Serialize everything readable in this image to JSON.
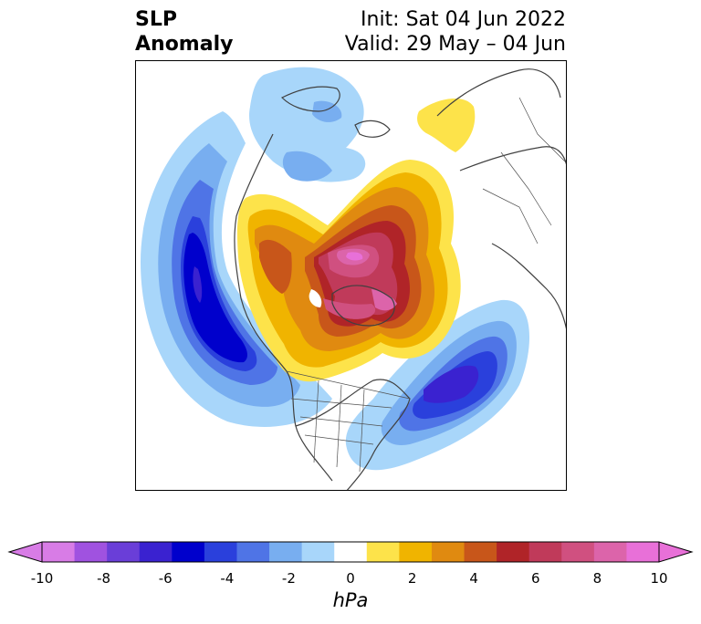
{
  "header": {
    "title_line1": "SLP",
    "title_line2": "Anomaly",
    "init": "Init: Sat 04 Jun 2022",
    "valid": "Valid: 29 May – 04 Jun"
  },
  "colorbar": {
    "unit": "hPa",
    "tick_labels": [
      "-10",
      "-8",
      "-6",
      "-4",
      "-2",
      "0",
      "2",
      "4",
      "6",
      "8",
      "10"
    ],
    "levels": [
      -10,
      -9,
      -8,
      -7,
      -6,
      -5,
      -4,
      -3,
      -2,
      -1,
      1,
      2,
      3,
      4,
      5,
      6,
      7,
      8,
      9,
      10
    ],
    "colors": [
      "#d87ce6",
      "#a052e0",
      "#6a3ed8",
      "#3a22d0",
      "#0000cc",
      "#2a40dc",
      "#4f74e6",
      "#78aef0",
      "#a8d6fa",
      "#ffffff",
      "#fde34a",
      "#f0b400",
      "#e08a10",
      "#c8561a",
      "#b02428",
      "#c03a5a",
      "#d05080",
      "#dc64aa",
      "#e870d8"
    ],
    "under_color": "#d87ce6",
    "over_color": "#e870d8"
  },
  "map": {
    "projection": "polar-stereographic",
    "region": "North America / Arctic",
    "anomalies": [
      {
        "name": "low-north-pacific",
        "sign": "negative",
        "peak_hpa": -7
      },
      {
        "name": "low-western-atlantic",
        "sign": "negative",
        "peak_hpa": -6
      },
      {
        "name": "low-arctic-canada",
        "sign": "negative",
        "peak_hpa": -2
      },
      {
        "name": "high-arctic-ocean",
        "sign": "positive",
        "peak_hpa": 9
      },
      {
        "name": "high-hudson-bay",
        "sign": "positive",
        "peak_hpa": 7
      },
      {
        "name": "high-scandinavia",
        "sign": "positive",
        "peak_hpa": 2
      }
    ]
  }
}
